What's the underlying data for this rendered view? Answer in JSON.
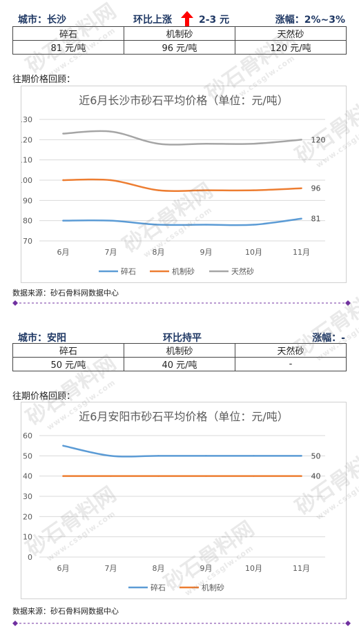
{
  "blocks": [
    {
      "city_label": "城市：长沙",
      "trend_label": "环比上涨",
      "trend_direction": "up",
      "delta_label": "2-3 元",
      "change_label": "涨幅：2%~3%",
      "table_headers": [
        "碎石",
        "机制砂",
        "天然砂"
      ],
      "table_values": [
        "81 元/吨",
        "96 元/吨",
        "120 元/吨"
      ],
      "review_label": "往期价格回顾：",
      "source_label": "数据来源：砂石骨料网数据中心"
    },
    {
      "city_label": "城市：安阳",
      "trend_label": "环比持平",
      "trend_direction": "flat",
      "delta_label": "",
      "change_label": "涨幅：-",
      "table_headers": [
        "碎石",
        "机制砂",
        "天然砂"
      ],
      "table_values": [
        "50 元/吨",
        "40 元/吨",
        "-"
      ],
      "review_label": "往期价格回顾：",
      "source_label": "数据来源：砂石骨料网数据中心"
    }
  ],
  "colors": {
    "header_text": "#1f3864",
    "arrow": "#ff0000",
    "separator": "#7030a0",
    "series": [
      "#5b9bd5",
      "#ed7d31",
      "#a5a5a5"
    ]
  },
  "watermark": {
    "text": "砂石骨料网",
    "subtext": "www.cssglw.com"
  },
  "chart_data": [
    {
      "type": "line",
      "title": "近6月长沙市砂石平均价格（单位：元/吨）",
      "categories": [
        "6月",
        "7月",
        "8月",
        "9月",
        "10月",
        "11月"
      ],
      "ylim": [
        70,
        130
      ],
      "yticks": [
        70,
        80,
        90,
        100,
        110,
        120,
        130
      ],
      "grid": true,
      "legend": "bottom",
      "series": [
        {
          "name": "碎石",
          "values": [
            80,
            80,
            78,
            78,
            78,
            81
          ],
          "end_label": "81"
        },
        {
          "name": "机制砂",
          "values": [
            100,
            100,
            95,
            95,
            95,
            96
          ],
          "end_label": "96"
        },
        {
          "name": "天然砂",
          "values": [
            123,
            124,
            118,
            118,
            118,
            120
          ],
          "end_label": "120"
        }
      ]
    },
    {
      "type": "line",
      "title": "近6月安阳市砂石平均价格（单位：元/吨）",
      "categories": [
        "6月",
        "7月",
        "8月",
        "9月",
        "10月",
        "11月"
      ],
      "ylim": [
        0,
        60
      ],
      "yticks": [
        0,
        10,
        20,
        30,
        40,
        50,
        60
      ],
      "grid": true,
      "legend": "bottom",
      "series": [
        {
          "name": "碎石",
          "values": [
            55,
            50,
            50,
            50,
            50,
            50
          ],
          "end_label": "50"
        },
        {
          "name": "机制砂",
          "values": [
            40,
            40,
            40,
            40,
            40,
            40
          ],
          "end_label": "40"
        }
      ]
    }
  ]
}
